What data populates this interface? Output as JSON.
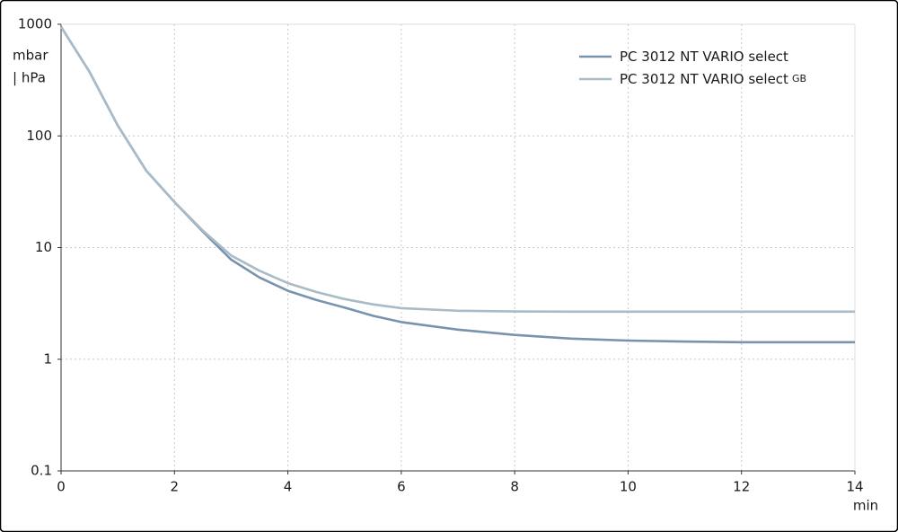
{
  "chart_data": {
    "type": "line",
    "ylabel": [
      "mbar",
      "| hPa"
    ],
    "xlabel": "min",
    "log_y": true,
    "grid": true,
    "legend": "upper right",
    "xlim": [
      0,
      14
    ],
    "xticks": [
      0,
      2,
      4,
      6,
      8,
      10,
      12,
      14
    ],
    "ylim": [
      0.1,
      1000
    ],
    "yticks": [
      0.1,
      1,
      10,
      100,
      1000
    ],
    "x": [
      0,
      0.5,
      1,
      1.5,
      2,
      2.5,
      3,
      3.5,
      4,
      4.5,
      5,
      5.5,
      6,
      7,
      8,
      9,
      10,
      11,
      12,
      13,
      14
    ],
    "series": [
      {
        "name": "PC 3012 NT VARIO select",
        "color": "#7893ad",
        "values": [
          950,
          376,
          124,
          49,
          25.6,
          13.9,
          7.8,
          5.4,
          4.1,
          3.4,
          2.9,
          2.45,
          2.15,
          1.84,
          1.65,
          1.53,
          1.47,
          1.44,
          1.42,
          1.42,
          1.42
        ]
      },
      {
        "name": "PC 3012 NT VARIO select",
        "name_subscript": "GB",
        "color": "#a8bbc6",
        "values": [
          950,
          376,
          124,
          49,
          25.6,
          14.2,
          8.5,
          6.2,
          4.8,
          4.0,
          3.46,
          3.1,
          2.87,
          2.72,
          2.68,
          2.67,
          2.67,
          2.67,
          2.67,
          2.67,
          2.67
        ]
      }
    ]
  }
}
